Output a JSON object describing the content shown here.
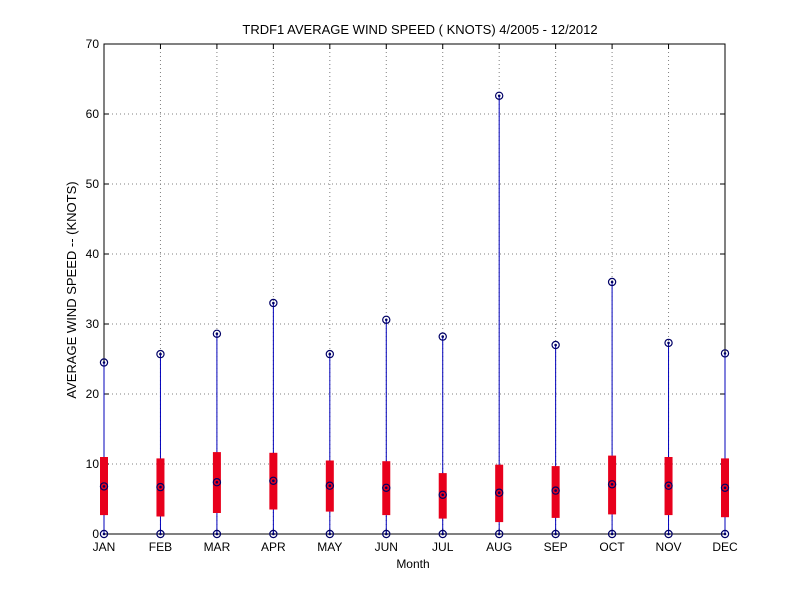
{
  "chart_data": {
    "type": "box",
    "title": "TRDF1  AVERAGE WIND SPEED ( KNOTS) 4/2005 - 12/2012",
    "xlabel": "Month",
    "ylabel": "AVERAGE WIND SPEED -- (KNOTS)",
    "ylim": [
      0,
      70
    ],
    "yticks": [
      0,
      10,
      20,
      30,
      40,
      50,
      60,
      70
    ],
    "grid": true,
    "categories": [
      "JAN",
      "FEB",
      "MAR",
      "APR",
      "MAY",
      "JUN",
      "JUL",
      "AUG",
      "SEP",
      "OCT",
      "NOV",
      "DEC"
    ],
    "series": [
      {
        "min": 0,
        "q1": 2.7,
        "median": 6.8,
        "q3": 11.0,
        "max": 24.5
      },
      {
        "min": 0,
        "q1": 2.5,
        "median": 6.7,
        "q3": 10.8,
        "max": 25.7
      },
      {
        "min": 0,
        "q1": 3.0,
        "median": 7.4,
        "q3": 11.7,
        "max": 28.6
      },
      {
        "min": 0,
        "q1": 3.5,
        "median": 7.6,
        "q3": 11.6,
        "max": 33.0
      },
      {
        "min": 0,
        "q1": 3.2,
        "median": 6.9,
        "q3": 10.5,
        "max": 25.7
      },
      {
        "min": 0,
        "q1": 2.7,
        "median": 6.6,
        "q3": 10.4,
        "max": 30.6
      },
      {
        "min": 0,
        "q1": 2.2,
        "median": 5.6,
        "q3": 8.7,
        "max": 28.2
      },
      {
        "min": 0,
        "q1": 1.7,
        "median": 5.9,
        "q3": 9.9,
        "max": 62.6
      },
      {
        "min": 0,
        "q1": 2.3,
        "median": 6.2,
        "q3": 9.7,
        "max": 27.0
      },
      {
        "min": 0,
        "q1": 2.8,
        "median": 7.1,
        "q3": 11.2,
        "max": 36.0
      },
      {
        "min": 0,
        "q1": 2.7,
        "median": 6.9,
        "q3": 11.0,
        "max": 27.3
      },
      {
        "min": 0,
        "q1": 2.4,
        "median": 6.6,
        "q3": 10.8,
        "max": 25.8
      }
    ],
    "colors": {
      "box": "#e8001c",
      "whisker": "#0000bb",
      "marker": "#000066",
      "grid": "#808080",
      "axis": "#000000"
    }
  }
}
